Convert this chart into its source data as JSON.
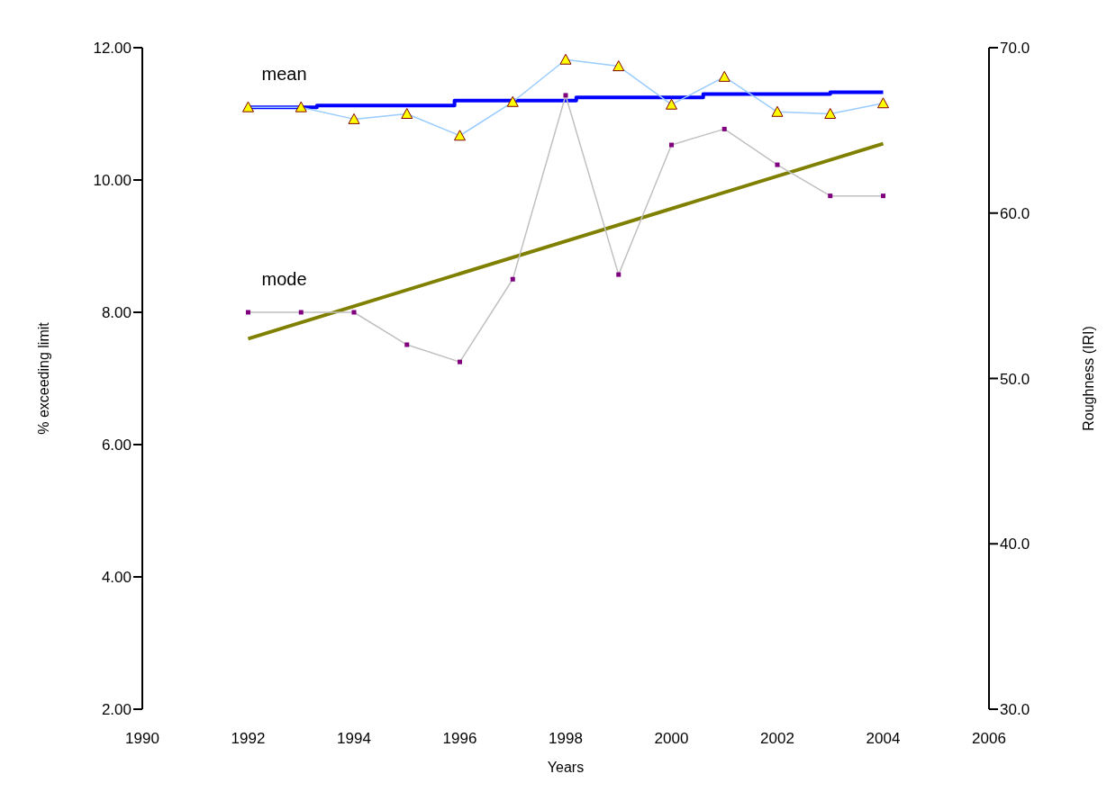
{
  "chart_data": {
    "type": "line",
    "xlabel": "Years",
    "ylabel": "% exceeding limit",
    "y2label": "Roughness (IRI)",
    "x": [
      1992,
      1993,
      1994,
      1995,
      1996,
      1997,
      1998,
      1999,
      2000,
      2001,
      2002,
      2003,
      2004
    ],
    "series": [
      {
        "name": "mean",
        "color": "#99ccff",
        "marker": "triangle",
        "values": [
          11.1,
          11.1,
          10.92,
          11.0,
          10.67,
          11.18,
          11.82,
          11.72,
          11.14,
          11.56,
          11.03,
          11.0,
          11.16
        ]
      },
      {
        "name": "mode",
        "color": "#c0c0c0",
        "marker": "square",
        "values": [
          8.0,
          8.0,
          8.0,
          7.51,
          7.25,
          8.5,
          11.28,
          8.57,
          10.53,
          10.77,
          10.23,
          9.76,
          9.76
        ]
      },
      {
        "type": "step",
        "color": "#0000ff",
        "axis": "y2",
        "x": [
          1992,
          1993.3,
          1995.9,
          1998.2,
          2000.6,
          2003,
          2004
        ],
        "values": [
          66.4,
          66.5,
          66.8,
          67.0,
          67.2,
          67.3,
          67.3
        ]
      },
      {
        "type": "line",
        "color": "#808000",
        "axis": "y2",
        "x": [
          1992,
          2004
        ],
        "values": [
          52.4,
          64.2
        ]
      }
    ],
    "xlim": [
      1990,
      2006
    ],
    "xticks": [
      1990,
      1992,
      1994,
      1996,
      1998,
      2000,
      2002,
      2004,
      2006
    ],
    "ylim": [
      2,
      12
    ],
    "yticks": [
      {
        "value": 2,
        "label": "2.00"
      },
      {
        "value": 4,
        "label": "4.00"
      },
      {
        "value": 6,
        "label": "6.00"
      },
      {
        "value": 8,
        "label": "8.00"
      },
      {
        "value": 10,
        "label": "10.00"
      },
      {
        "value": 12,
        "label": "12.00"
      }
    ],
    "y2lim": [
      30,
      70
    ],
    "y2ticks": [
      {
        "value": 30,
        "label": "30.0"
      },
      {
        "value": 40,
        "label": "40.0"
      },
      {
        "value": 50,
        "label": "50.0"
      },
      {
        "value": 60,
        "label": "60.0"
      },
      {
        "value": 70,
        "label": "70.0"
      }
    ],
    "grid": false,
    "legend": false
  }
}
